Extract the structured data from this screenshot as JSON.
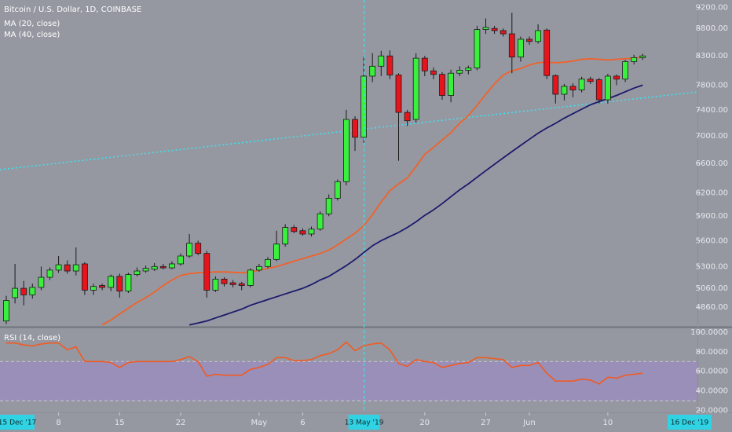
{
  "chart_data": [
    {
      "type": "candlestick",
      "title": "Bitcoin / U.S. Dollar, 1D, COINBASE",
      "x": [
        "2019-04-02",
        "2019-04-03",
        "2019-04-04",
        "2019-04-05",
        "2019-04-06",
        "2019-04-07",
        "2019-04-08",
        "2019-04-09",
        "2019-04-10",
        "2019-04-11",
        "2019-04-12",
        "2019-04-13",
        "2019-04-14",
        "2019-04-15",
        "2019-04-16",
        "2019-04-17",
        "2019-04-18",
        "2019-04-19",
        "2019-04-20",
        "2019-04-21",
        "2019-04-22",
        "2019-04-23",
        "2019-04-24",
        "2019-04-25",
        "2019-04-26",
        "2019-04-27",
        "2019-04-28",
        "2019-04-29",
        "2019-04-30",
        "2019-05-01",
        "2019-05-02",
        "2019-05-03",
        "2019-05-04",
        "2019-05-05",
        "2019-05-06",
        "2019-05-07",
        "2019-05-08",
        "2019-05-09",
        "2019-05-10",
        "2019-05-11",
        "2019-05-12",
        "2019-05-13",
        "2019-05-14",
        "2019-05-15",
        "2019-05-16",
        "2019-05-17",
        "2019-05-18",
        "2019-05-19",
        "2019-05-20",
        "2019-05-21",
        "2019-05-22",
        "2019-05-23",
        "2019-05-24",
        "2019-05-25",
        "2019-05-26",
        "2019-05-27",
        "2019-05-28",
        "2019-05-29",
        "2019-05-30",
        "2019-05-31",
        "2019-06-01",
        "2019-06-02",
        "2019-06-03",
        "2019-06-04",
        "2019-06-05",
        "2019-06-06",
        "2019-06-07",
        "2019-06-08",
        "2019-06-09",
        "2019-06-10",
        "2019-06-11",
        "2019-06-12",
        "2019-06-13",
        "2019-06-14"
      ],
      "open": [
        4720,
        4960,
        5060,
        4990,
        5070,
        5180,
        5260,
        5320,
        5250,
        5330,
        5040,
        5090,
        5070,
        5190,
        5030,
        5210,
        5250,
        5270,
        5300,
        5285,
        5330,
        5420,
        5570,
        5450,
        5040,
        5160,
        5120,
        5110,
        5090,
        5260,
        5300,
        5380,
        5560,
        5760,
        5720,
        5680,
        5740,
        5930,
        6130,
        6350,
        7250,
        6980,
        7950,
        8120,
        8300,
        7970,
        7360,
        7250,
        8260,
        8040,
        7980,
        7630,
        8000,
        8050,
        8090,
        8780,
        8800,
        8760,
        8700,
        8280,
        8600,
        8560,
        8770,
        7960,
        7650,
        7780,
        7720,
        7900,
        7890,
        7560,
        7950,
        7900,
        8200,
        8270
      ],
      "high": [
        4980,
        5330,
        5140,
        5110,
        5300,
        5290,
        5420,
        5370,
        5520,
        5350,
        5110,
        5110,
        5210,
        5220,
        5230,
        5290,
        5310,
        5340,
        5330,
        5360,
        5450,
        5680,
        5600,
        5480,
        5190,
        5180,
        5150,
        5130,
        5280,
        5330,
        5410,
        5720,
        5800,
        5790,
        5750,
        5770,
        5960,
        6180,
        6380,
        7400,
        7300,
        8300,
        8350,
        8390,
        8400,
        8000,
        7400,
        8350,
        8300,
        8100,
        8020,
        8060,
        8120,
        8130,
        8850,
        8990,
        8850,
        8800,
        9100,
        8650,
        8650,
        8880,
        8800,
        7980,
        7820,
        7830,
        7940,
        7940,
        7920,
        7990,
        7980,
        8230,
        8320,
        8340
      ],
      "low": [
        4690,
        4900,
        4880,
        4950,
        5040,
        5150,
        5230,
        5220,
        5200,
        4990,
        4990,
        5040,
        5030,
        4960,
        5010,
        5190,
        5230,
        5250,
        5270,
        5270,
        5310,
        5400,
        5430,
        4960,
        5020,
        5080,
        5070,
        5040,
        5070,
        5240,
        5280,
        5360,
        5530,
        5690,
        5660,
        5650,
        5720,
        5900,
        6100,
        6300,
        6780,
        6900,
        7850,
        7950,
        7900,
        6640,
        7150,
        7200,
        7950,
        7900,
        7560,
        7520,
        7950,
        7980,
        8050,
        8700,
        8700,
        8650,
        8000,
        8200,
        8500,
        8520,
        7900,
        7500,
        7550,
        7600,
        7680,
        7820,
        7500,
        7500,
        7800,
        7850,
        8150,
        8230
      ],
      "close": [
        4930,
        5060,
        4990,
        5070,
        5180,
        5260,
        5320,
        5250,
        5320,
        5040,
        5080,
        5070,
        5190,
        5030,
        5210,
        5250,
        5280,
        5300,
        5285,
        5330,
        5420,
        5570,
        5450,
        5040,
        5160,
        5110,
        5100,
        5090,
        5260,
        5300,
        5380,
        5560,
        5760,
        5710,
        5680,
        5740,
        5930,
        6130,
        6350,
        7250,
        6980,
        7950,
        8120,
        8300,
        7970,
        7360,
        7230,
        8260,
        8040,
        7980,
        7630,
        8000,
        8050,
        8090,
        8780,
        8820,
        8760,
        8700,
        8280,
        8600,
        8560,
        8760,
        7960,
        7650,
        7780,
        7720,
        7900,
        7860,
        7560,
        7950,
        7900,
        8200,
        8270,
        8300
      ],
      "up_color": "#39f03c",
      "down_color": "#e8141c",
      "series": [
        {
          "name": "MA (20, close)",
          "color": "#f0622a",
          "values": [
            null,
            null,
            null,
            null,
            null,
            null,
            null,
            null,
            null,
            null,
            null,
            4680,
            4730,
            4790,
            4850,
            4910,
            4960,
            5020,
            5090,
            5150,
            5200,
            5220,
            5230,
            5235,
            5240,
            5240,
            5235,
            5230,
            5240,
            5260,
            5280,
            5300,
            5330,
            5360,
            5390,
            5420,
            5450,
            5490,
            5550,
            5620,
            5690,
            5780,
            5920,
            6080,
            6230,
            6320,
            6400,
            6560,
            6730,
            6830,
            6940,
            7050,
            7190,
            7310,
            7470,
            7650,
            7820,
            7970,
            8040,
            8080,
            8140,
            8180,
            8190,
            8180,
            8190,
            8210,
            8240,
            8250,
            8240,
            8230,
            8240,
            8250,
            8260,
            8280
          ]
        },
        {
          "name": "MA (40, close)",
          "color": "#1c1a6c",
          "values": [
            null,
            null,
            null,
            null,
            null,
            null,
            null,
            null,
            null,
            null,
            null,
            null,
            null,
            null,
            null,
            null,
            null,
            null,
            null,
            null,
            null,
            4680,
            4700,
            4720,
            4750,
            4780,
            4810,
            4840,
            4880,
            4910,
            4940,
            4970,
            5000,
            5030,
            5060,
            5100,
            5150,
            5190,
            5250,
            5310,
            5380,
            5460,
            5540,
            5600,
            5650,
            5700,
            5760,
            5830,
            5910,
            5980,
            6060,
            6150,
            6240,
            6320,
            6410,
            6500,
            6590,
            6680,
            6770,
            6860,
            6950,
            7040,
            7120,
            7190,
            7270,
            7340,
            7410,
            7480,
            7530,
            7580,
            7630,
            7690,
            7750,
            7800
          ]
        }
      ],
      "ylim": [
        4670,
        9350
      ],
      "log_scale": true,
      "grid": false,
      "yticks": [
        {
          "value": 9200,
          "label": "9200.00"
        },
        {
          "value": 8800,
          "label": "8800.00"
        },
        {
          "value": 8300,
          "label": "8300.00"
        },
        {
          "value": 7800,
          "label": "7800.00"
        },
        {
          "value": 7400,
          "label": "7400.00"
        },
        {
          "value": 7000,
          "label": "7000.00"
        },
        {
          "value": 6600,
          "label": "6600.00"
        },
        {
          "value": 6200,
          "label": "6200.00"
        },
        {
          "value": 5900,
          "label": "5900.00"
        },
        {
          "value": 5600,
          "label": "5600.00"
        },
        {
          "value": 5300,
          "label": "5300.00"
        },
        {
          "value": 5060,
          "label": "5060.00"
        },
        {
          "value": 4860,
          "label": "4860.00"
        }
      ],
      "xticks": [
        {
          "value": "2019-04-08",
          "label": "8"
        },
        {
          "value": "2019-04-15",
          "label": "15"
        },
        {
          "value": "2019-04-22",
          "label": "22"
        },
        {
          "value": "2019-05-01",
          "label": "May"
        },
        {
          "value": "2019-05-06",
          "label": "6"
        },
        {
          "value": "2019-05-20",
          "label": "20"
        },
        {
          "value": "2019-05-27",
          "label": "27"
        },
        {
          "value": "2019-06-01",
          "label": "Jun"
        },
        {
          "value": "2019-06-10",
          "label": "10"
        }
      ],
      "crosshair": {
        "value": "2019-05-13",
        "label": "13 May '19"
      },
      "range_labels": [
        "15 Dec '17",
        "16 Dec '19"
      ]
    },
    {
      "type": "line",
      "series": [
        {
          "name": "RSI (14, close)",
          "color": "#f25a22",
          "values": [
            89,
            89,
            87,
            86,
            88,
            89,
            89,
            82,
            85,
            70,
            70,
            70,
            69,
            64,
            69,
            70,
            70,
            70,
            70,
            70,
            72,
            75,
            70,
            55,
            57,
            56,
            56,
            56,
            62,
            64,
            67,
            74,
            74,
            71,
            71,
            72,
            76,
            78,
            82,
            90,
            81,
            86,
            88,
            89,
            82,
            68,
            65,
            72,
            70,
            69,
            64,
            66,
            68,
            69,
            74,
            74,
            73,
            72,
            64,
            66,
            66,
            69,
            58,
            50,
            50,
            50,
            52,
            51,
            47,
            54,
            53,
            56,
            57,
            58
          ]
        }
      ],
      "ylim": [
        18,
        104
      ],
      "bands": [
        30,
        70
      ],
      "band_color": "#9c8cc0",
      "yticks": [
        {
          "value": 100,
          "label": "100.0000"
        },
        {
          "value": 80,
          "label": "80.0000"
        },
        {
          "value": 60,
          "label": "60.0000"
        },
        {
          "value": 40,
          "label": "40.0000"
        },
        {
          "value": 20,
          "label": "20.0000"
        }
      ]
    }
  ]
}
